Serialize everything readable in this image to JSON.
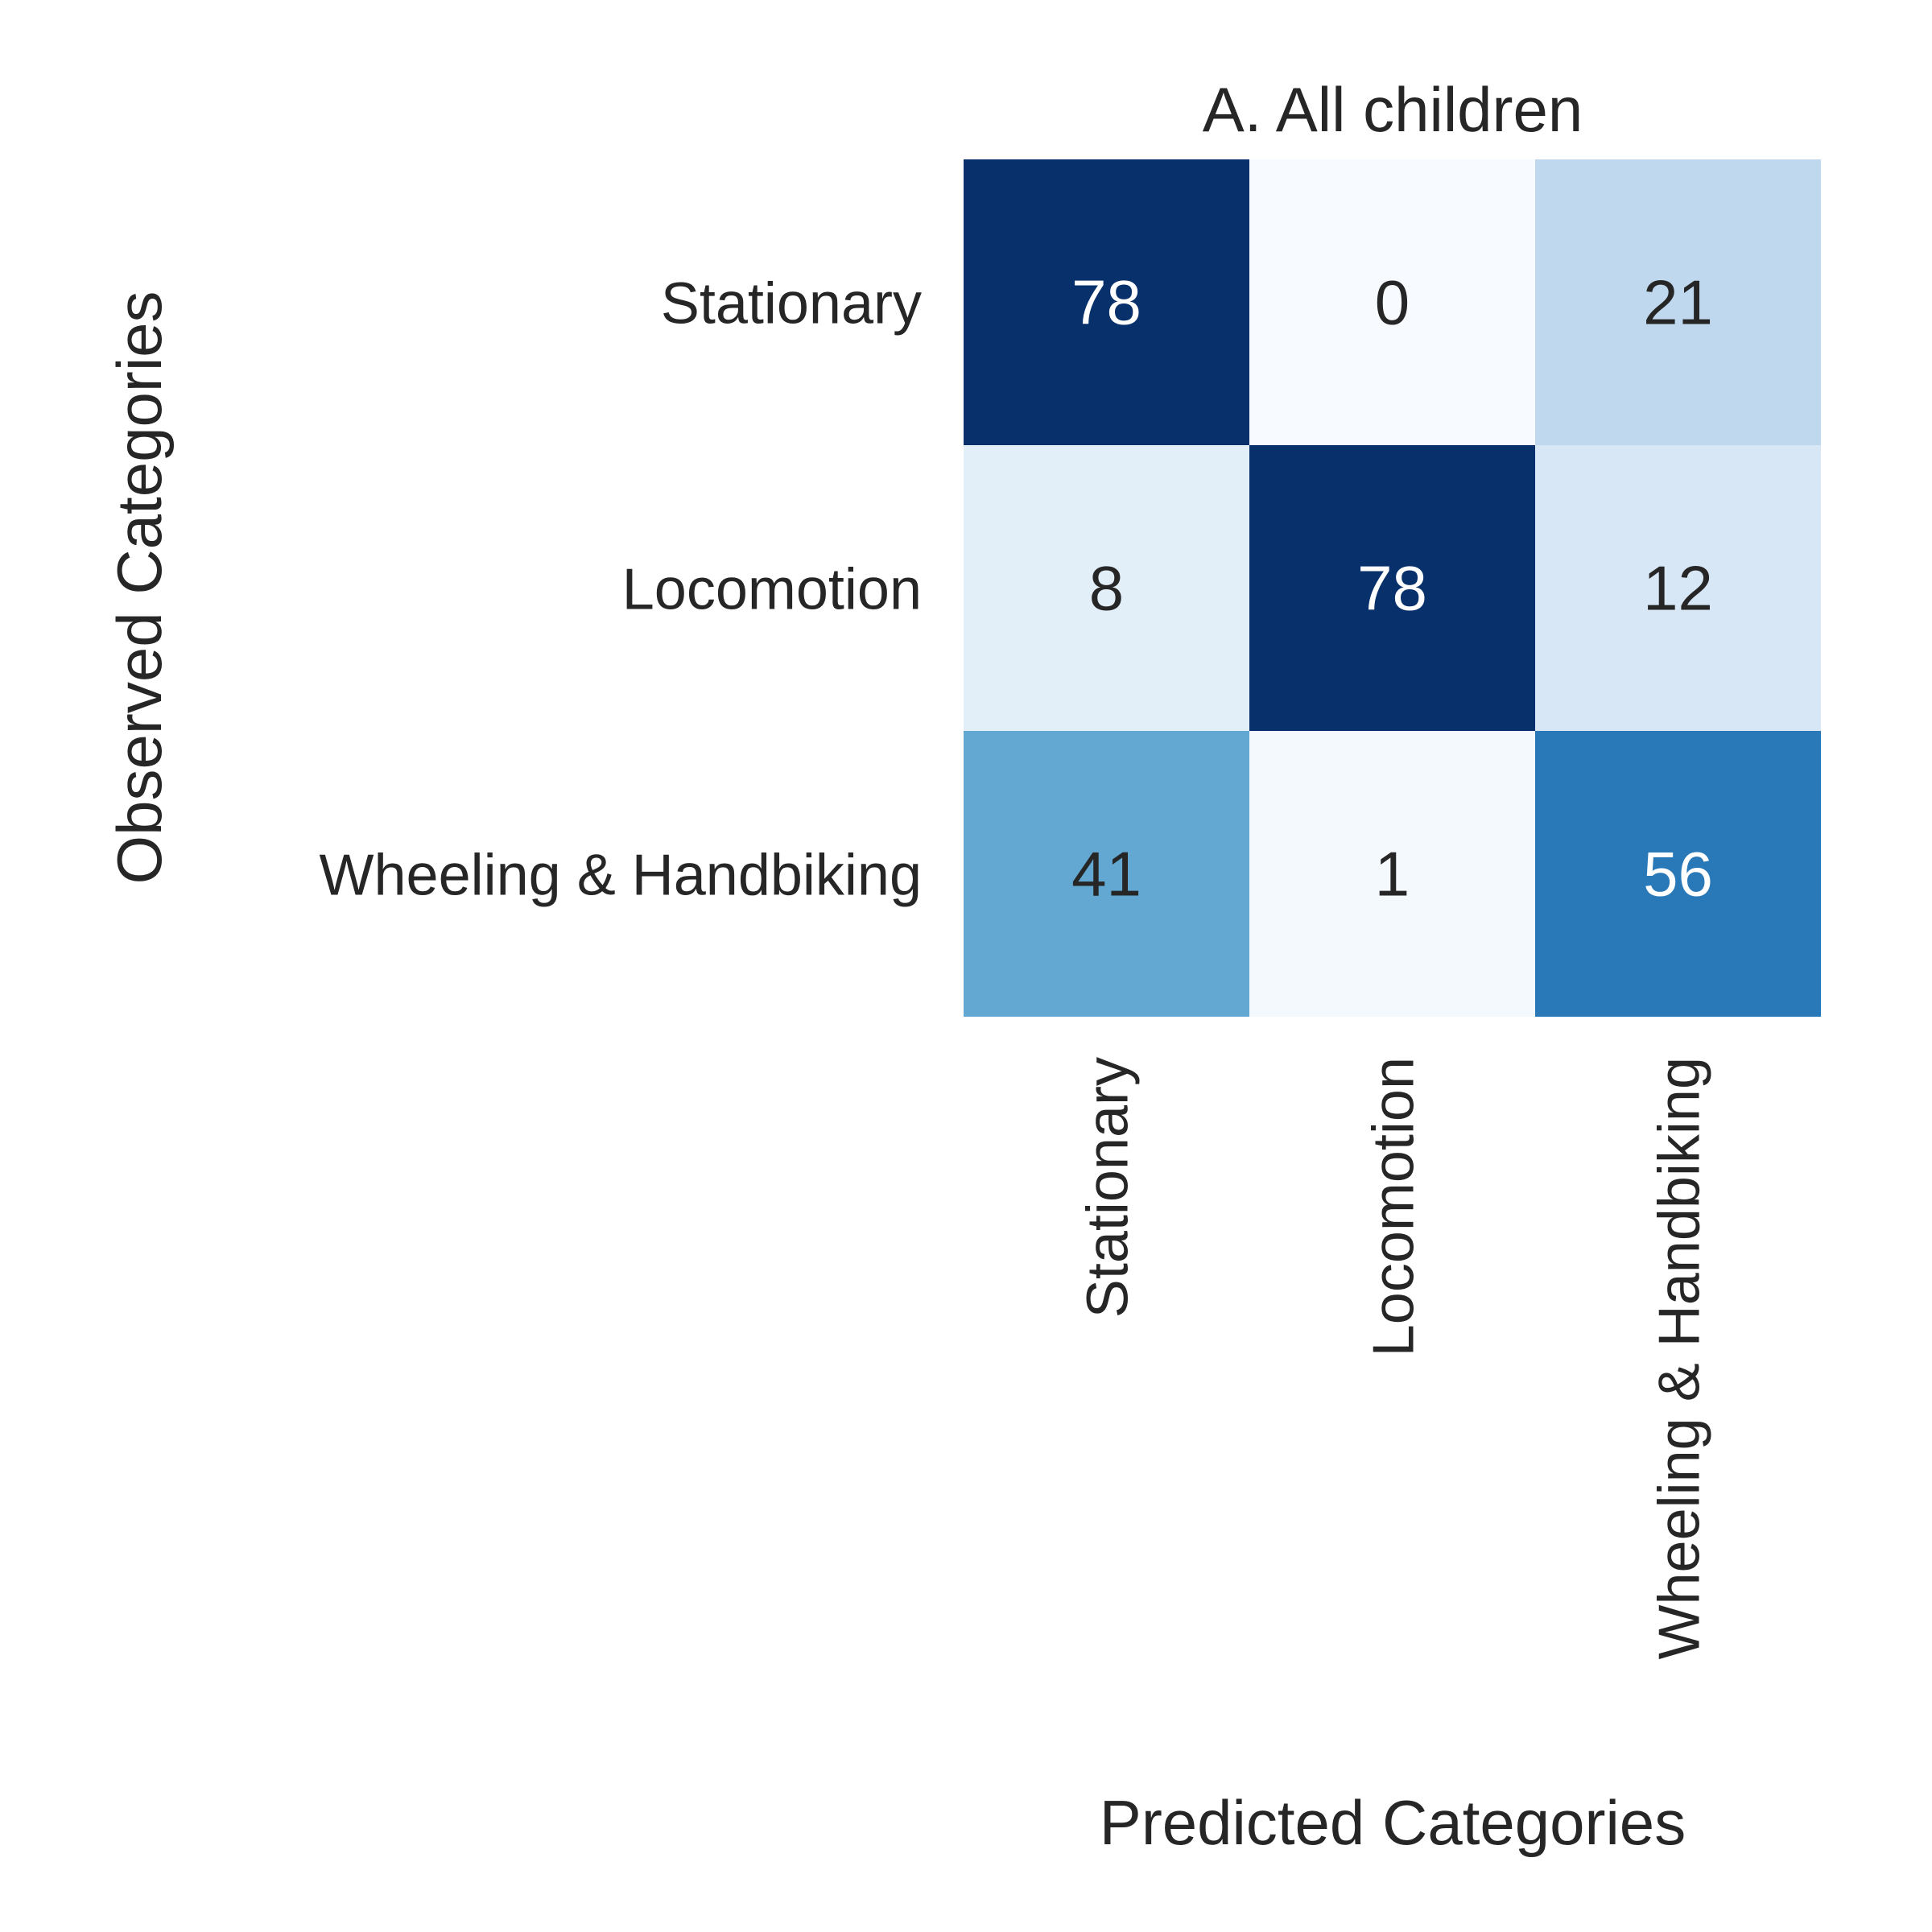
{
  "chart_data": {
    "type": "heatmap",
    "title": "A. All children",
    "xlabel": "Predicted Categories",
    "ylabel": "Observed Categories",
    "x_categories": [
      "Stationary",
      "Locomotion",
      "Wheeling & Handbiking"
    ],
    "y_categories": [
      "Stationary",
      "Locomotion",
      "Wheeling & Handbiking"
    ],
    "values": [
      [
        78,
        0,
        21
      ],
      [
        8,
        78,
        12
      ],
      [
        41,
        1,
        56
      ]
    ],
    "value_range": [
      0,
      78
    ],
    "colormap": "Blues",
    "colorbar": false,
    "grid": false
  }
}
